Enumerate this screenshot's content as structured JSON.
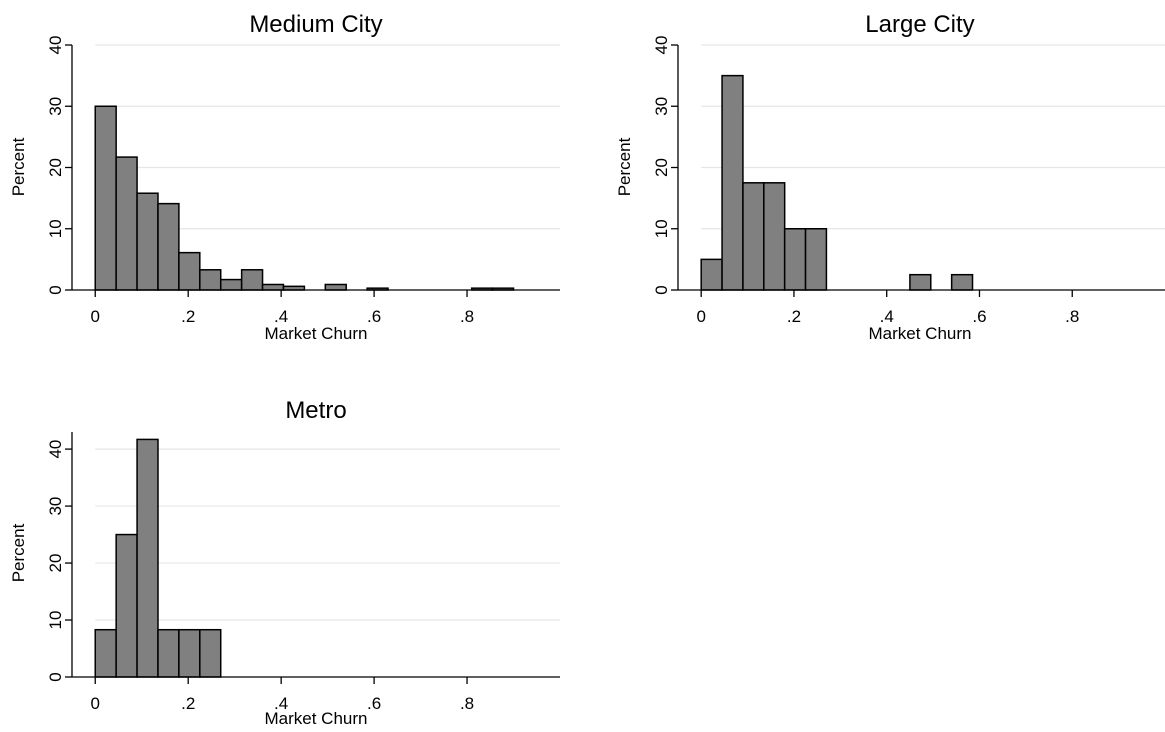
{
  "style": {
    "bar_fill": "#808080",
    "bar_stroke": "#000000",
    "grid_color": "#e6e6e6",
    "axis_color": "#000000",
    "background": "#ffffff"
  },
  "chart_data": [
    {
      "type": "bar",
      "title": "Medium City",
      "xlabel": "Market Churn",
      "ylabel": "Percent",
      "xlim": [
        -0.05,
        1.0
      ],
      "ylim": [
        0,
        40
      ],
      "x_ticks": [
        0,
        0.2,
        0.4,
        0.6,
        0.8
      ],
      "x_tick_labels": [
        "0",
        ".2",
        ".4",
        ".6",
        ".8"
      ],
      "y_ticks": [
        0,
        10,
        20,
        30,
        40
      ],
      "y_tick_labels": [
        "0",
        "10",
        "20",
        "30",
        "40"
      ],
      "grid": true,
      "bin_width": 0.045,
      "bin_starts": [
        0.0,
        0.045,
        0.09,
        0.135,
        0.18,
        0.225,
        0.27,
        0.315,
        0.36,
        0.405,
        0.495,
        0.585,
        0.81,
        0.855
      ],
      "values": [
        30,
        21.7,
        15.8,
        14.1,
        6.1,
        3.3,
        1.7,
        3.3,
        0.9,
        0.6,
        0.9,
        0.3,
        0.3,
        0.3
      ]
    },
    {
      "type": "bar",
      "title": "Large City",
      "xlabel": "Market Churn",
      "ylabel": "Percent",
      "xlim": [
        -0.05,
        1.0
      ],
      "ylim": [
        0,
        40
      ],
      "x_ticks": [
        0,
        0.2,
        0.4,
        0.6,
        0.8
      ],
      "x_tick_labels": [
        "0",
        ".2",
        ".4",
        ".6",
        ".8"
      ],
      "y_ticks": [
        0,
        10,
        20,
        30,
        40
      ],
      "y_tick_labels": [
        "0",
        "10",
        "20",
        "30",
        "40"
      ],
      "grid": true,
      "bin_width": 0.045,
      "bin_starts": [
        0.0,
        0.045,
        0.09,
        0.135,
        0.18,
        0.225,
        0.45,
        0.54
      ],
      "values": [
        5,
        35,
        17.5,
        17.5,
        10,
        10,
        2.5,
        2.5
      ]
    },
    {
      "type": "bar",
      "title": "Metro",
      "xlabel": "Market Churn",
      "ylabel": "Percent",
      "xlim": [
        -0.05,
        1.0
      ],
      "ylim": [
        0,
        43
      ],
      "x_ticks": [
        0,
        0.2,
        0.4,
        0.6,
        0.8
      ],
      "x_tick_labels": [
        "0",
        ".2",
        ".4",
        ".6",
        ".8"
      ],
      "y_ticks": [
        0,
        10,
        20,
        30,
        40
      ],
      "y_tick_labels": [
        "0",
        "10",
        "20",
        "30",
        "40"
      ],
      "grid": true,
      "bin_width": 0.045,
      "bin_starts": [
        0.0,
        0.045,
        0.09,
        0.135,
        0.18,
        0.225
      ],
      "values": [
        8.3,
        25,
        41.7,
        8.3,
        8.3,
        8.3
      ]
    }
  ]
}
